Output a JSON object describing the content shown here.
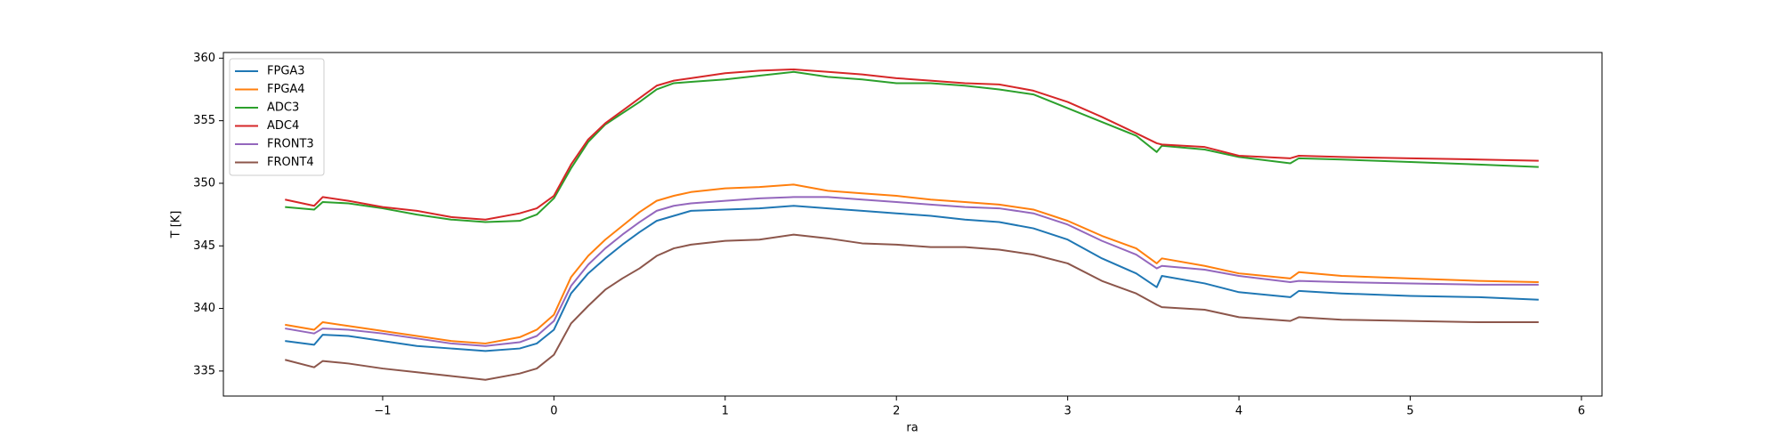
{
  "chart_data": {
    "type": "line",
    "x_label": "ra",
    "y_label": "T [K]",
    "x": [
      -1.57,
      -1.4,
      -1.35,
      -1.2,
      -1.0,
      -0.8,
      -0.6,
      -0.4,
      -0.2,
      -0.1,
      0,
      0.1,
      0.2,
      0.3,
      0.4,
      0.5,
      0.6,
      0.7,
      0.8,
      1.0,
      1.2,
      1.4,
      1.6,
      1.8,
      2.0,
      2.2,
      2.4,
      2.6,
      2.8,
      3.0,
      3.2,
      3.4,
      3.52,
      3.55,
      3.8,
      4.0,
      4.3,
      4.35,
      4.6,
      5.0,
      5.4,
      5.75
    ],
    "series": [
      {
        "name": "FPGA3",
        "color": "#1f77b4",
        "values": [
          337.4,
          337.1,
          337.9,
          337.8,
          337.4,
          337.0,
          336.8,
          336.6,
          336.8,
          337.2,
          338.3,
          341.2,
          342.8,
          344.0,
          345.1,
          346.1,
          347.0,
          347.4,
          347.8,
          347.9,
          348.0,
          348.2,
          348.0,
          347.8,
          347.6,
          347.4,
          347.1,
          346.9,
          346.4,
          345.5,
          344.0,
          342.8,
          341.7,
          342.6,
          342.0,
          341.3,
          340.9,
          341.4,
          341.2,
          341.0,
          340.9,
          340.7
        ]
      },
      {
        "name": "FPGA4",
        "color": "#ff7f0e",
        "values": [
          338.7,
          338.3,
          338.9,
          338.6,
          338.2,
          337.8,
          337.4,
          337.2,
          337.7,
          338.3,
          339.5,
          342.5,
          344.2,
          345.5,
          346.6,
          347.7,
          348.6,
          349.0,
          349.3,
          349.6,
          349.7,
          349.9,
          349.4,
          349.2,
          349.0,
          348.7,
          348.5,
          348.3,
          347.9,
          347.0,
          345.8,
          344.8,
          343.6,
          344.0,
          343.4,
          342.8,
          342.4,
          342.9,
          342.6,
          342.4,
          342.2,
          342.1
        ]
      },
      {
        "name": "ADC3",
        "color": "#2ca02c",
        "values": [
          348.1,
          347.9,
          348.5,
          348.4,
          348.0,
          347.5,
          347.1,
          346.9,
          347.0,
          347.5,
          348.8,
          351.2,
          353.3,
          354.7,
          355.6,
          356.5,
          357.5,
          358.0,
          358.1,
          358.3,
          358.6,
          358.9,
          358.5,
          358.3,
          358.0,
          358.0,
          357.8,
          357.5,
          357.1,
          356.0,
          354.9,
          353.8,
          352.5,
          353.0,
          352.7,
          352.1,
          351.6,
          352.0,
          351.9,
          351.7,
          351.5,
          351.3
        ]
      },
      {
        "name": "ADC4",
        "color": "#d62728",
        "values": [
          348.7,
          348.2,
          348.9,
          348.6,
          348.1,
          347.8,
          347.3,
          347.1,
          347.6,
          348.0,
          349.0,
          351.5,
          353.5,
          354.8,
          355.8,
          356.8,
          357.8,
          358.2,
          358.4,
          358.8,
          359.0,
          359.1,
          358.9,
          358.7,
          358.4,
          358.2,
          358.0,
          357.9,
          357.4,
          356.5,
          355.3,
          354.0,
          353.2,
          353.1,
          352.9,
          352.2,
          352.0,
          352.2,
          352.1,
          352.0,
          351.9,
          351.8
        ]
      },
      {
        "name": "FRONT3",
        "color": "#9467bd",
        "values": [
          338.4,
          338.0,
          338.4,
          338.3,
          338.0,
          337.6,
          337.2,
          337.0,
          337.3,
          337.8,
          339.0,
          341.8,
          343.5,
          344.8,
          345.9,
          346.9,
          347.8,
          348.2,
          348.4,
          348.6,
          348.8,
          348.9,
          348.9,
          348.7,
          348.5,
          348.3,
          348.1,
          348.0,
          347.6,
          346.7,
          345.4,
          344.3,
          343.2,
          343.4,
          343.1,
          342.6,
          342.1,
          342.2,
          342.1,
          342.0,
          341.9,
          341.9
        ]
      },
      {
        "name": "FRONT4",
        "color": "#8c564b",
        "values": [
          335.9,
          335.3,
          335.8,
          335.6,
          335.2,
          334.9,
          334.6,
          334.3,
          334.8,
          335.2,
          336.3,
          338.8,
          340.2,
          341.5,
          342.4,
          343.2,
          344.2,
          344.8,
          345.1,
          345.4,
          345.5,
          345.9,
          345.6,
          345.2,
          345.1,
          344.9,
          344.9,
          344.7,
          344.3,
          343.6,
          342.2,
          341.2,
          340.3,
          340.1,
          339.9,
          339.3,
          339.0,
          339.3,
          339.1,
          339.0,
          338.9,
          338.9
        ]
      }
    ],
    "xlim": [
      -1.93,
      6.12
    ],
    "ylim": [
      333.0,
      360.45
    ],
    "xticks": [
      {
        "value": -1,
        "label": "−1"
      },
      0,
      1,
      2,
      3,
      4,
      5,
      6
    ],
    "yticks": [
      335,
      340,
      345,
      350,
      355,
      360
    ],
    "legend": "upper left"
  }
}
